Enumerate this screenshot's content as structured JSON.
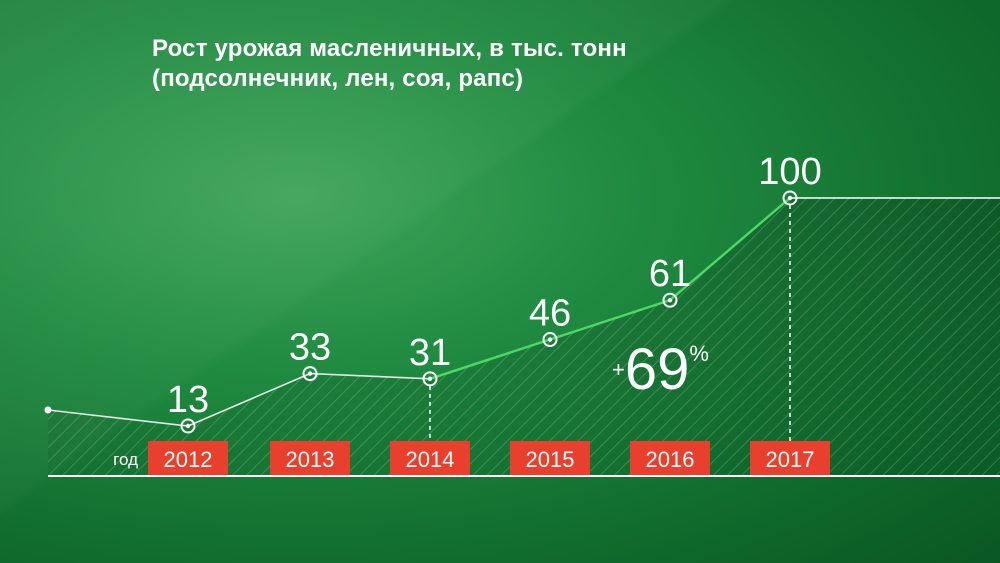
{
  "title_line1": "Рост урожая масленичных, в тыс. тонн",
  "title_line2": "(подсолнечник, лен, соя, рапс)",
  "xaxis_label": "год",
  "growth": {
    "sign": "+",
    "number": "69",
    "unit": "%"
  },
  "colors": {
    "background": "#1e8a3f",
    "year_box": "#e8402d",
    "line": "#ffffff",
    "line_highlight": "#4cd964"
  },
  "chart_data": {
    "type": "line",
    "title": "Рост урожая масленичных, в тыс. тонн (подсолнечник, лен, соя, рапс)",
    "xlabel": "год",
    "ylabel": "",
    "categories": [
      "2012",
      "2013",
      "2014",
      "2015",
      "2016",
      "2017"
    ],
    "values": [
      13,
      33,
      31,
      46,
      61,
      100
    ],
    "value_labels": [
      "13",
      "33",
      "31",
      "46",
      "61",
      "100"
    ],
    "ylim": [
      0,
      100
    ],
    "annotations": [
      "+69%"
    ]
  }
}
